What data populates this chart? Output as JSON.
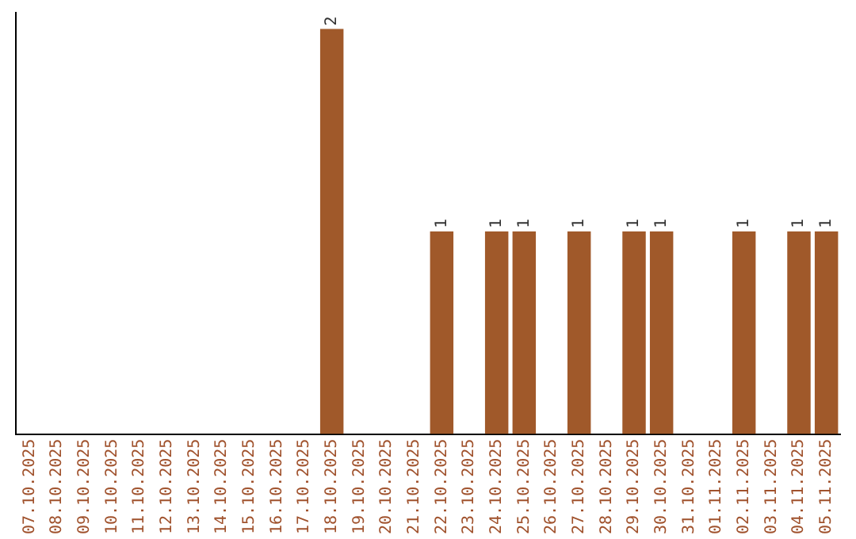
{
  "chart_data": {
    "type": "bar",
    "categories": [
      "07.10.2025",
      "08.10.2025",
      "09.10.2025",
      "10.10.2025",
      "11.10.2025",
      "12.10.2025",
      "13.10.2025",
      "14.10.2025",
      "15.10.2025",
      "16.10.2025",
      "17.10.2025",
      "18.10.2025",
      "19.10.2025",
      "20.10.2025",
      "21.10.2025",
      "22.10.2025",
      "23.10.2025",
      "24.10.2025",
      "25.10.2025",
      "26.10.2025",
      "27.10.2025",
      "28.10.2025",
      "29.10.2025",
      "30.10.2025",
      "31.10.2025",
      "01.11.2025",
      "02.11.2025",
      "03.11.2025",
      "04.11.2025",
      "05.11.2025"
    ],
    "values": [
      0,
      0,
      0,
      0,
      0,
      0,
      0,
      0,
      0,
      0,
      0,
      2,
      0,
      0,
      0,
      1,
      0,
      1,
      1,
      0,
      1,
      0,
      1,
      1,
      0,
      0,
      1,
      0,
      1,
      1
    ],
    "value_labels": [
      null,
      null,
      null,
      null,
      null,
      null,
      null,
      null,
      null,
      null,
      null,
      "2",
      null,
      null,
      null,
      "1",
      null,
      "1",
      "1",
      null,
      "1",
      null,
      "1",
      "1",
      null,
      null,
      "1",
      null,
      "1",
      "1"
    ],
    "color": "#a0592a",
    "ylim": [
      0,
      2.08
    ],
    "tick_labels": "x",
    "grid": false,
    "legend": false
  }
}
